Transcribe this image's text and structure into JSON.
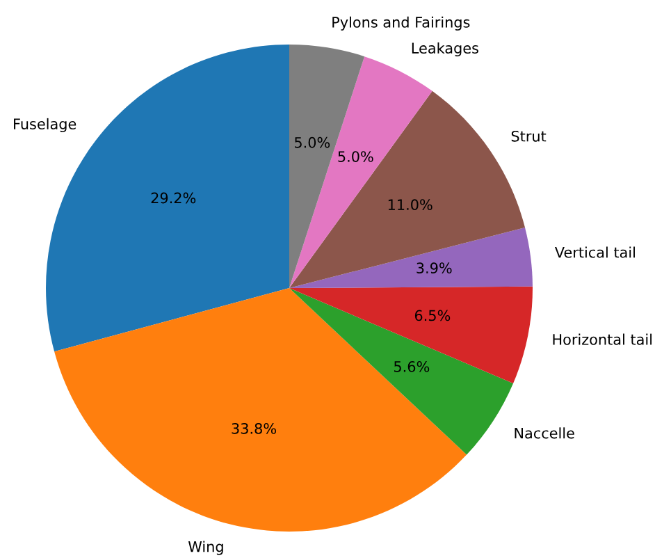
{
  "chart_data": {
    "type": "pie",
    "categories": [
      "Fuselage",
      "Wing",
      "Naccelle",
      "Horizontal tail",
      "Vertical tail",
      "Strut",
      "Leakages",
      "Pylons and Fairings"
    ],
    "values": [
      29.2,
      33.8,
      5.6,
      6.5,
      3.9,
      11.0,
      5.0,
      5.0
    ],
    "value_labels": [
      "29.2%",
      "33.8%",
      "5.6%",
      "6.5%",
      "3.9%",
      "11.0%",
      "5.0%",
      "5.0%"
    ],
    "colors": [
      "#1f77b4",
      "#ff7f0e",
      "#2ca02c",
      "#d62728",
      "#9467bd",
      "#8c564b",
      "#e377c2",
      "#7f7f7f"
    ]
  }
}
